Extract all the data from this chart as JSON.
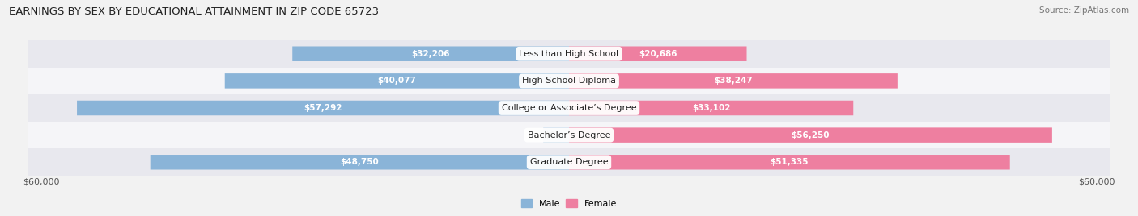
{
  "title": "EARNINGS BY SEX BY EDUCATIONAL ATTAINMENT IN ZIP CODE 65723",
  "source": "Source: ZipAtlas.com",
  "categories": [
    "Less than High School",
    "High School Diploma",
    "College or Associate’s Degree",
    "Bachelor’s Degree",
    "Graduate Degree"
  ],
  "male_values": [
    32206,
    40077,
    57292,
    0,
    48750
  ],
  "female_values": [
    20686,
    38247,
    33102,
    56250,
    51335
  ],
  "male_color": "#8ab4d8",
  "female_color": "#ee7fa0",
  "male_label_color_inside": "white",
  "female_label_color_inside": "white",
  "male_label_color_outside": "#666666",
  "max_value": 60000,
  "bg_color": "#f2f2f2",
  "row_bg_odd": "#e8e8ee",
  "row_bg_even": "#f5f5f8",
  "xlabel_left": "$60,000",
  "xlabel_right": "$60,000",
  "title_fontsize": 9.5,
  "source_fontsize": 7.5,
  "label_fontsize": 7.5,
  "tick_fontsize": 8,
  "legend_fontsize": 8
}
